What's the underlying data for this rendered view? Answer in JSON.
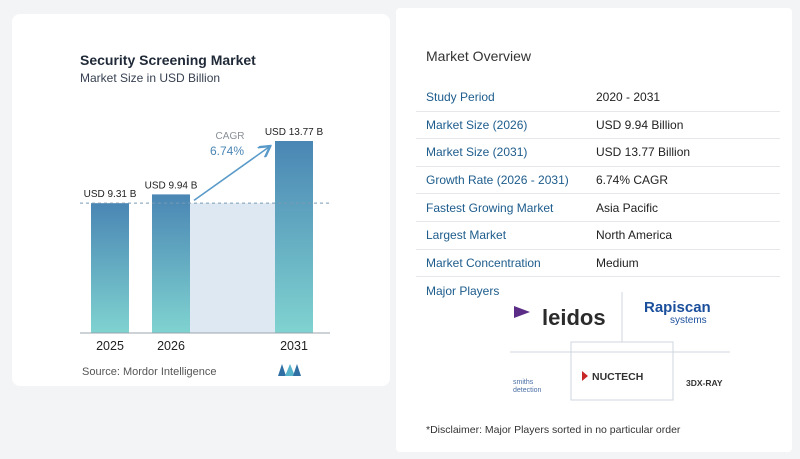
{
  "chart": {
    "title": "Security Screening Market",
    "subtitle": "Market Size in USD Billion",
    "cagr_label": "CAGR",
    "cagr_value": "6.74%",
    "source": "Source:  Mordor Intelligence"
  },
  "chart_data": {
    "type": "bar",
    "categories": [
      "2025",
      "2026",
      "2031"
    ],
    "values": [
      9.31,
      9.94,
      13.77
    ],
    "data_labels": [
      "USD 9.31 B",
      "USD 9.94 B",
      "USD 13.77 B"
    ],
    "title": "Security Screening Market",
    "subtitle": "Market Size in USD Billion",
    "xlabel": "",
    "ylabel": "",
    "colors": {
      "bar_top": "#4a86b4",
      "bar_bottom": "#7fd3d0",
      "band": "#dde8f2",
      "arrow": "#5a9ac8",
      "dash": "#7a9bb5"
    }
  },
  "overview": {
    "title": "Market Overview",
    "rows": [
      {
        "label": "Study Period",
        "value": "2020 - 2031"
      },
      {
        "label": "Market Size (2026)",
        "value": "USD 9.94 Billion"
      },
      {
        "label": "Market Size (2031)",
        "value": "USD 13.77 Billion"
      },
      {
        "label": "Growth Rate (2026 - 2031)",
        "value": "6.74% CAGR"
      },
      {
        "label": "Fastest Growing Market",
        "value": "Asia Pacific"
      },
      {
        "label": "Largest Market",
        "value": "North America"
      },
      {
        "label": "Market Concentration",
        "value": "Medium"
      }
    ]
  },
  "players": {
    "label": "Major Players",
    "logos": {
      "leidos": "leidos",
      "rapiscan": "Rapiscan",
      "rapiscan_sub": "systems",
      "smiths_1": "smiths",
      "smiths_2": "detection",
      "nuctech": "NUCTECH",
      "threedx": "3DX-RAY"
    }
  },
  "disclaimer": "*Disclaimer: Major Players sorted in no particular order"
}
